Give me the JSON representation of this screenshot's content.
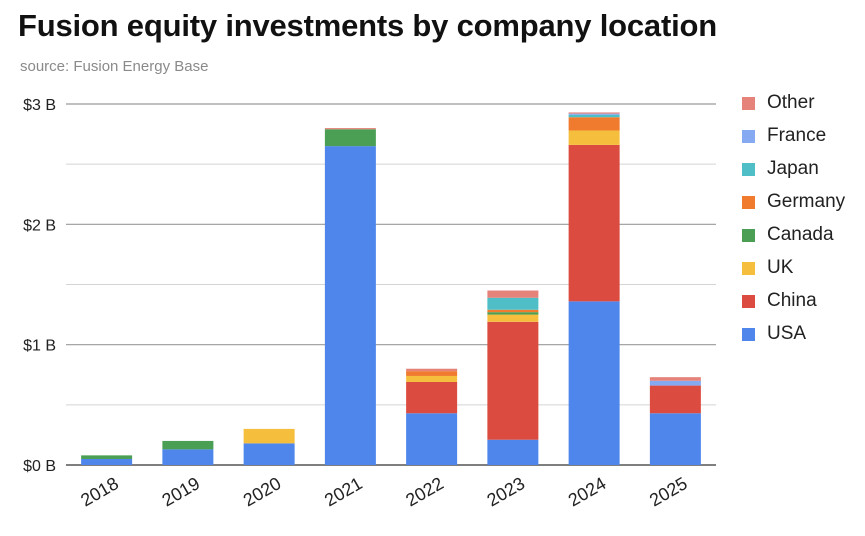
{
  "title": "Fusion equity investments by company location",
  "subtitle": "source: Fusion Energy Base",
  "chart_data": {
    "type": "bar",
    "stacked": true,
    "title": "Fusion equity investments by company location",
    "subtitle": "source: Fusion Energy Base",
    "xlabel": "",
    "ylabel": "",
    "ylim": [
      0,
      3
    ],
    "y_ticks": [
      {
        "value": 0,
        "label": "$0 B"
      },
      {
        "value": 1,
        "label": "$1 B"
      },
      {
        "value": 2,
        "label": "$2 B"
      },
      {
        "value": 3,
        "label": "$3 B"
      }
    ],
    "y_minor_ticks": [
      0.5,
      1.5,
      2.5
    ],
    "grid": true,
    "legend_position": "right",
    "categories": [
      "2018",
      "2019",
      "2020",
      "2021",
      "2022",
      "2023",
      "2024",
      "2025"
    ],
    "series": [
      {
        "name": "USA",
        "color": "#4f86ec",
        "values": [
          0.05,
          0.13,
          0.18,
          2.65,
          0.43,
          0.21,
          1.36,
          0.43
        ]
      },
      {
        "name": "China",
        "color": "#db4b3f",
        "values": [
          0,
          0,
          0,
          0,
          0.26,
          0.98,
          1.3,
          0.23
        ]
      },
      {
        "name": "UK",
        "color": "#f5bf3d",
        "values": [
          0,
          0,
          0.12,
          0,
          0.05,
          0.06,
          0.12,
          0
        ]
      },
      {
        "name": "Canada",
        "color": "#4a9f55",
        "values": [
          0.03,
          0.07,
          0,
          0.14,
          0,
          0.02,
          0,
          0
        ]
      },
      {
        "name": "Germany",
        "color": "#f07b2e",
        "values": [
          0,
          0,
          0,
          0,
          0.04,
          0.02,
          0.11,
          0
        ]
      },
      {
        "name": "Japan",
        "color": "#4fbec6",
        "values": [
          0,
          0,
          0,
          0,
          0,
          0.1,
          0.02,
          0
        ]
      },
      {
        "name": "France",
        "color": "#86aaf2",
        "values": [
          0,
          0,
          0,
          0,
          0,
          0,
          0.01,
          0.04
        ]
      },
      {
        "name": "Other",
        "color": "#e5837a",
        "values": [
          0,
          0,
          0,
          0.01,
          0.02,
          0.06,
          0.01,
          0.03
        ]
      }
    ],
    "legend_order": [
      "Other",
      "France",
      "Japan",
      "Germany",
      "Canada",
      "UK",
      "China",
      "USA"
    ]
  }
}
